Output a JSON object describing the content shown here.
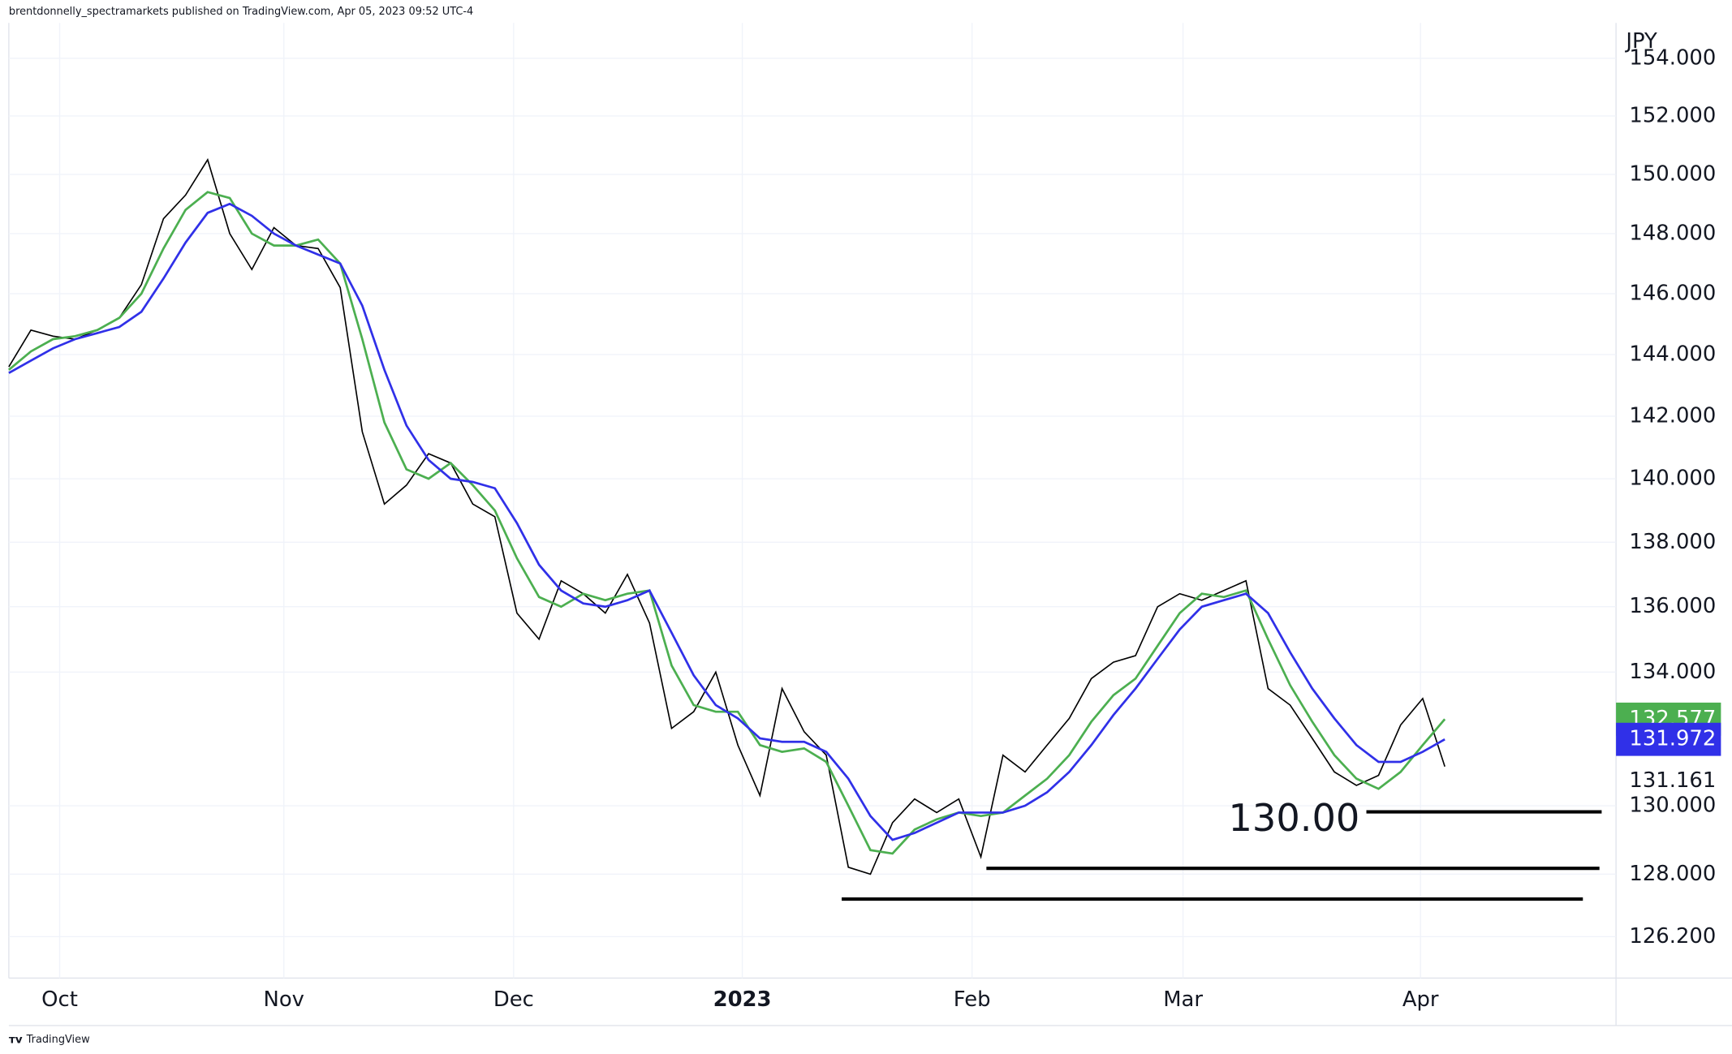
{
  "header": "brentdonnelly_spectramarkets published on TradingView.com, Apr 05, 2023 09:52 UTC-4",
  "footer": "TradingView",
  "chart_data": {
    "type": "line",
    "y_unit": "JPY",
    "log_scale": true,
    "grid": true,
    "xlim": [
      0,
      72.75
    ],
    "xticks": [
      {
        "value": 2.3,
        "label": "Oct"
      },
      {
        "value": 12.45,
        "label": "Nov"
      },
      {
        "value": 22.85,
        "label": "Dec"
      },
      {
        "value": 33.2,
        "label": "2023"
      },
      {
        "value": 43.6,
        "label": "Feb"
      },
      {
        "value": 53.15,
        "label": "Mar"
      },
      {
        "value": 63.9,
        "label": "Apr"
      }
    ],
    "ylim": [
      125.02,
      155.24
    ],
    "yticks": [
      {
        "value": 154,
        "label": "154.000"
      },
      {
        "value": 152,
        "label": "152.000"
      },
      {
        "value": 150,
        "label": "150.000"
      },
      {
        "value": 148,
        "label": "148.000"
      },
      {
        "value": 146,
        "label": "146.000"
      },
      {
        "value": 144,
        "label": "144.000"
      },
      {
        "value": 142,
        "label": "142.000"
      },
      {
        "value": 140,
        "label": "140.000"
      },
      {
        "value": 138,
        "label": "138.000"
      },
      {
        "value": 136,
        "label": "136.000"
      },
      {
        "value": 134,
        "label": "134.000"
      },
      {
        "value": 130,
        "label": "130.000"
      },
      {
        "value": 128,
        "label": "128.000"
      },
      {
        "value": 126.2,
        "label": "126.200"
      }
    ],
    "series": [
      {
        "color": "#000000",
        "values": [
          143.6,
          144.8,
          144.6,
          144.5,
          144.8,
          145.2,
          146.3,
          148.5,
          149.3,
          150.5,
          148.0,
          146.8,
          148.2,
          147.6,
          147.5,
          146.2,
          141.5,
          139.2,
          139.8,
          140.8,
          140.5,
          139.2,
          138.8,
          135.8,
          135.0,
          136.8,
          136.4,
          135.8,
          137.0,
          135.5,
          132.3,
          132.8,
          134.0,
          131.8,
          130.3,
          133.5,
          132.2,
          131.5,
          128.2,
          128.0,
          129.5,
          130.2,
          129.8,
          130.2,
          128.5,
          131.5,
          131.0,
          131.8,
          132.6,
          133.8,
          134.3,
          134.5,
          136.0,
          136.4,
          136.2,
          136.5,
          136.8,
          133.5,
          133.0,
          132.0,
          131.0,
          130.6,
          130.9,
          132.4,
          133.2,
          131.161
        ]
      },
      {
        "color": "#4caf50",
        "values": [
          143.5,
          144.1,
          144.5,
          144.6,
          144.8,
          145.2,
          146.0,
          147.5,
          148.8,
          149.4,
          149.2,
          148.0,
          147.6,
          147.6,
          147.8,
          147.0,
          144.5,
          141.8,
          140.3,
          140.0,
          140.5,
          139.8,
          139.0,
          137.5,
          136.3,
          136.0,
          136.4,
          136.2,
          136.4,
          136.5,
          134.2,
          133.0,
          132.8,
          132.8,
          131.8,
          131.6,
          131.7,
          131.3,
          130.0,
          128.7,
          128.6,
          129.3,
          129.6,
          129.8,
          129.7,
          129.8,
          130.3,
          130.8,
          131.5,
          132.5,
          133.3,
          133.8,
          134.8,
          135.8,
          136.4,
          136.3,
          136.5,
          135.0,
          133.6,
          132.5,
          131.5,
          130.8,
          130.5,
          131.0,
          131.8,
          132.577
        ]
      },
      {
        "color": "#3030e8",
        "values": [
          143.4,
          143.8,
          144.2,
          144.5,
          144.7,
          144.9,
          145.4,
          146.5,
          147.7,
          148.7,
          149.0,
          148.6,
          148.0,
          147.6,
          147.3,
          147.0,
          145.6,
          143.5,
          141.7,
          140.6,
          140.0,
          139.9,
          139.7,
          138.6,
          137.3,
          136.5,
          136.1,
          136.0,
          136.2,
          136.5,
          135.2,
          133.9,
          133.0,
          132.6,
          132.0,
          131.9,
          131.9,
          131.6,
          130.8,
          129.7,
          129.0,
          129.2,
          129.5,
          129.8,
          129.8,
          129.8,
          130.0,
          130.4,
          131.0,
          131.8,
          132.7,
          133.5,
          134.4,
          135.3,
          136.0,
          136.2,
          136.4,
          135.8,
          134.6,
          133.5,
          132.6,
          131.8,
          131.3,
          131.3,
          131.6,
          131.972
        ]
      }
    ],
    "hlines": [
      {
        "value": 129.82,
        "xlim": [
          61.45,
          72.1
        ]
      },
      {
        "value": 128.17,
        "xlim": [
          44.25,
          72.0
        ]
      },
      {
        "value": 127.28,
        "xlim": [
          37.7,
          71.25
        ]
      }
    ],
    "annotation": "130.00"
  }
}
